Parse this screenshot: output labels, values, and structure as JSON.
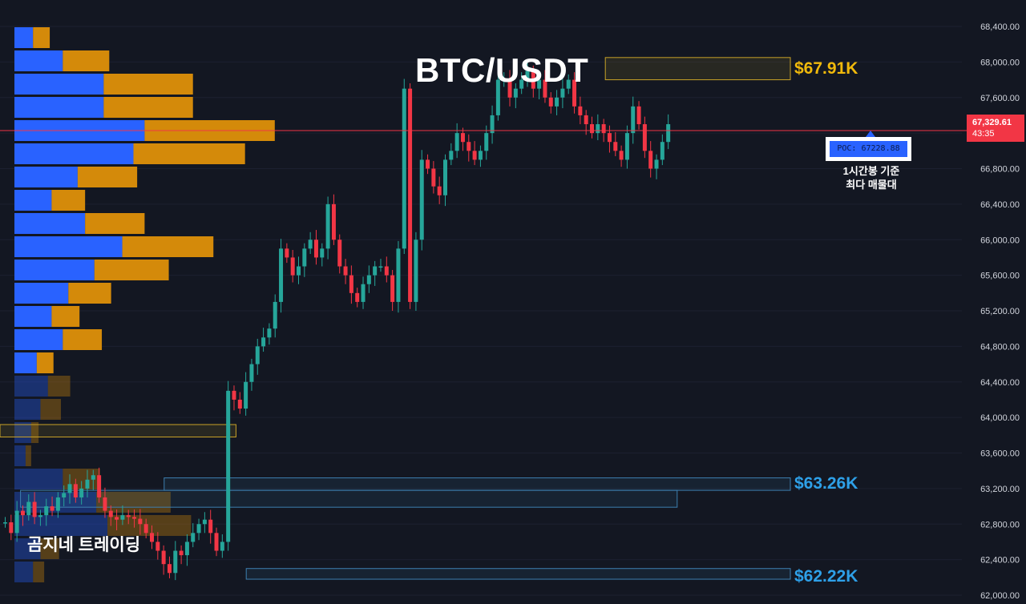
{
  "title": "BTC/USDT",
  "watermark": "곰지네 트레이딩",
  "levels": {
    "high": "$67.91K",
    "mid": "$63.26K",
    "low": "$62.22K"
  },
  "poc": {
    "label": "POC: 67228.88",
    "note_line1": "1시간봉 기준",
    "note_line2": "최다 매물대"
  },
  "current": {
    "price": "67,329.61",
    "countdown": "43:35"
  },
  "colors": {
    "up": "#26a69a",
    "down": "#f23645",
    "vp_buy": "#2962ff",
    "vp_sell": "#d48a0a",
    "zone_yellow": "#c9a227",
    "zone_blue": "#3d7fb0",
    "background": "#131722"
  },
  "chart_data": {
    "type": "candlestick",
    "y_ticks": [
      "68,400.00",
      "68,000.00",
      "67,600.00",
      "67,200.00",
      "66,800.00",
      "66,400.00",
      "66,000.00",
      "65,600.00",
      "65,200.00",
      "64,800.00",
      "64,400.00",
      "64,000.00",
      "63,600.00",
      "63,200.00",
      "62,800.00",
      "62,400.00",
      "62,000.00"
    ],
    "ylim": [
      62000,
      68400
    ],
    "current_price": 67329.61,
    "poc_price": 67228.88,
    "candle_close_path": [
      62820,
      62700,
      62950,
      62900,
      63050,
      62880,
      62900,
      63000,
      62950,
      63100,
      63150,
      63250,
      63100,
      63200,
      63300,
      63350,
      63100,
      62950,
      62880,
      62850,
      62900,
      62880,
      62860,
      62800,
      62700,
      62600,
      62500,
      62350,
      62250,
      62500,
      62450,
      62600,
      62700,
      62800,
      62850,
      62700,
      62500,
      62600,
      64300,
      64200,
      64100,
      64400,
      64600,
      64800,
      64900,
      65000,
      65300,
      65900,
      65800,
      65600,
      65700,
      65900,
      66000,
      65800,
      65900,
      66400,
      66000,
      65700,
      65600,
      65400,
      65300,
      65500,
      65600,
      65700,
      65700,
      65600,
      65300,
      65900,
      67700,
      65300,
      66000,
      66900,
      66800,
      66600,
      66500,
      66900,
      67000,
      67200,
      67100,
      67000,
      66900,
      67000,
      67200,
      67400,
      67800,
      67800,
      67600,
      67700,
      67800,
      67900,
      67700,
      67800,
      67600,
      67500,
      67600,
      67700,
      67800,
      67500,
      67400,
      67300,
      67200,
      67300,
      67200,
      67100,
      67000,
      66900,
      67200,
      67500,
      67300,
      67000,
      66800,
      66900,
      67100,
      67300
    ],
    "volume_profile": [
      {
        "buy": 1.0,
        "sell": 0.9
      },
      {
        "buy": 2.6,
        "sell": 2.5
      },
      {
        "buy": 4.8,
        "sell": 4.8
      },
      {
        "buy": 4.8,
        "sell": 4.8
      },
      {
        "buy": 7.0,
        "sell": 7.0
      },
      {
        "buy": 6.4,
        "sell": 6.0
      },
      {
        "buy": 3.4,
        "sell": 3.2
      },
      {
        "buy": 2.0,
        "sell": 1.8
      },
      {
        "buy": 3.8,
        "sell": 3.2
      },
      {
        "buy": 5.8,
        "sell": 4.9
      },
      {
        "buy": 4.3,
        "sell": 4.0
      },
      {
        "buy": 2.9,
        "sell": 2.3
      },
      {
        "buy": 2.0,
        "sell": 1.5
      },
      {
        "buy": 2.6,
        "sell": 2.1
      },
      {
        "buy": 1.2,
        "sell": 0.9
      },
      {
        "buy": 1.8,
        "sell": 1.2
      },
      {
        "buy": 1.4,
        "sell": 1.1
      },
      {
        "buy": 0.9,
        "sell": 0.4
      },
      {
        "buy": 0.6,
        "sell": 0.3
      },
      {
        "buy": 2.6,
        "sell": 2.0
      },
      {
        "buy": 4.4,
        "sell": 4.0
      },
      {
        "buy": 5.0,
        "sell": 4.5
      },
      {
        "buy": 1.4,
        "sell": 1.0
      },
      {
        "buy": 1.0,
        "sell": 0.6
      }
    ],
    "zones": [
      {
        "label": "$67.91K",
        "from": 67800,
        "to": 68050,
        "x_from": 0.59,
        "style": "yellow"
      },
      {
        "label": "$63.26K",
        "from": 63180,
        "to": 63320,
        "x_from": 0.16,
        "style": "blue"
      },
      {
        "from": 62990,
        "to": 63180,
        "x_from": 0.02,
        "x_to": 0.66,
        "style": "blue"
      },
      {
        "label": "$62.22K",
        "from": 62180,
        "to": 62300,
        "x_from": 0.24,
        "style": "blue"
      },
      {
        "from": 63780,
        "to": 63920,
        "x_from": 0.0,
        "x_to": 0.23,
        "style": "yellow"
      }
    ]
  }
}
